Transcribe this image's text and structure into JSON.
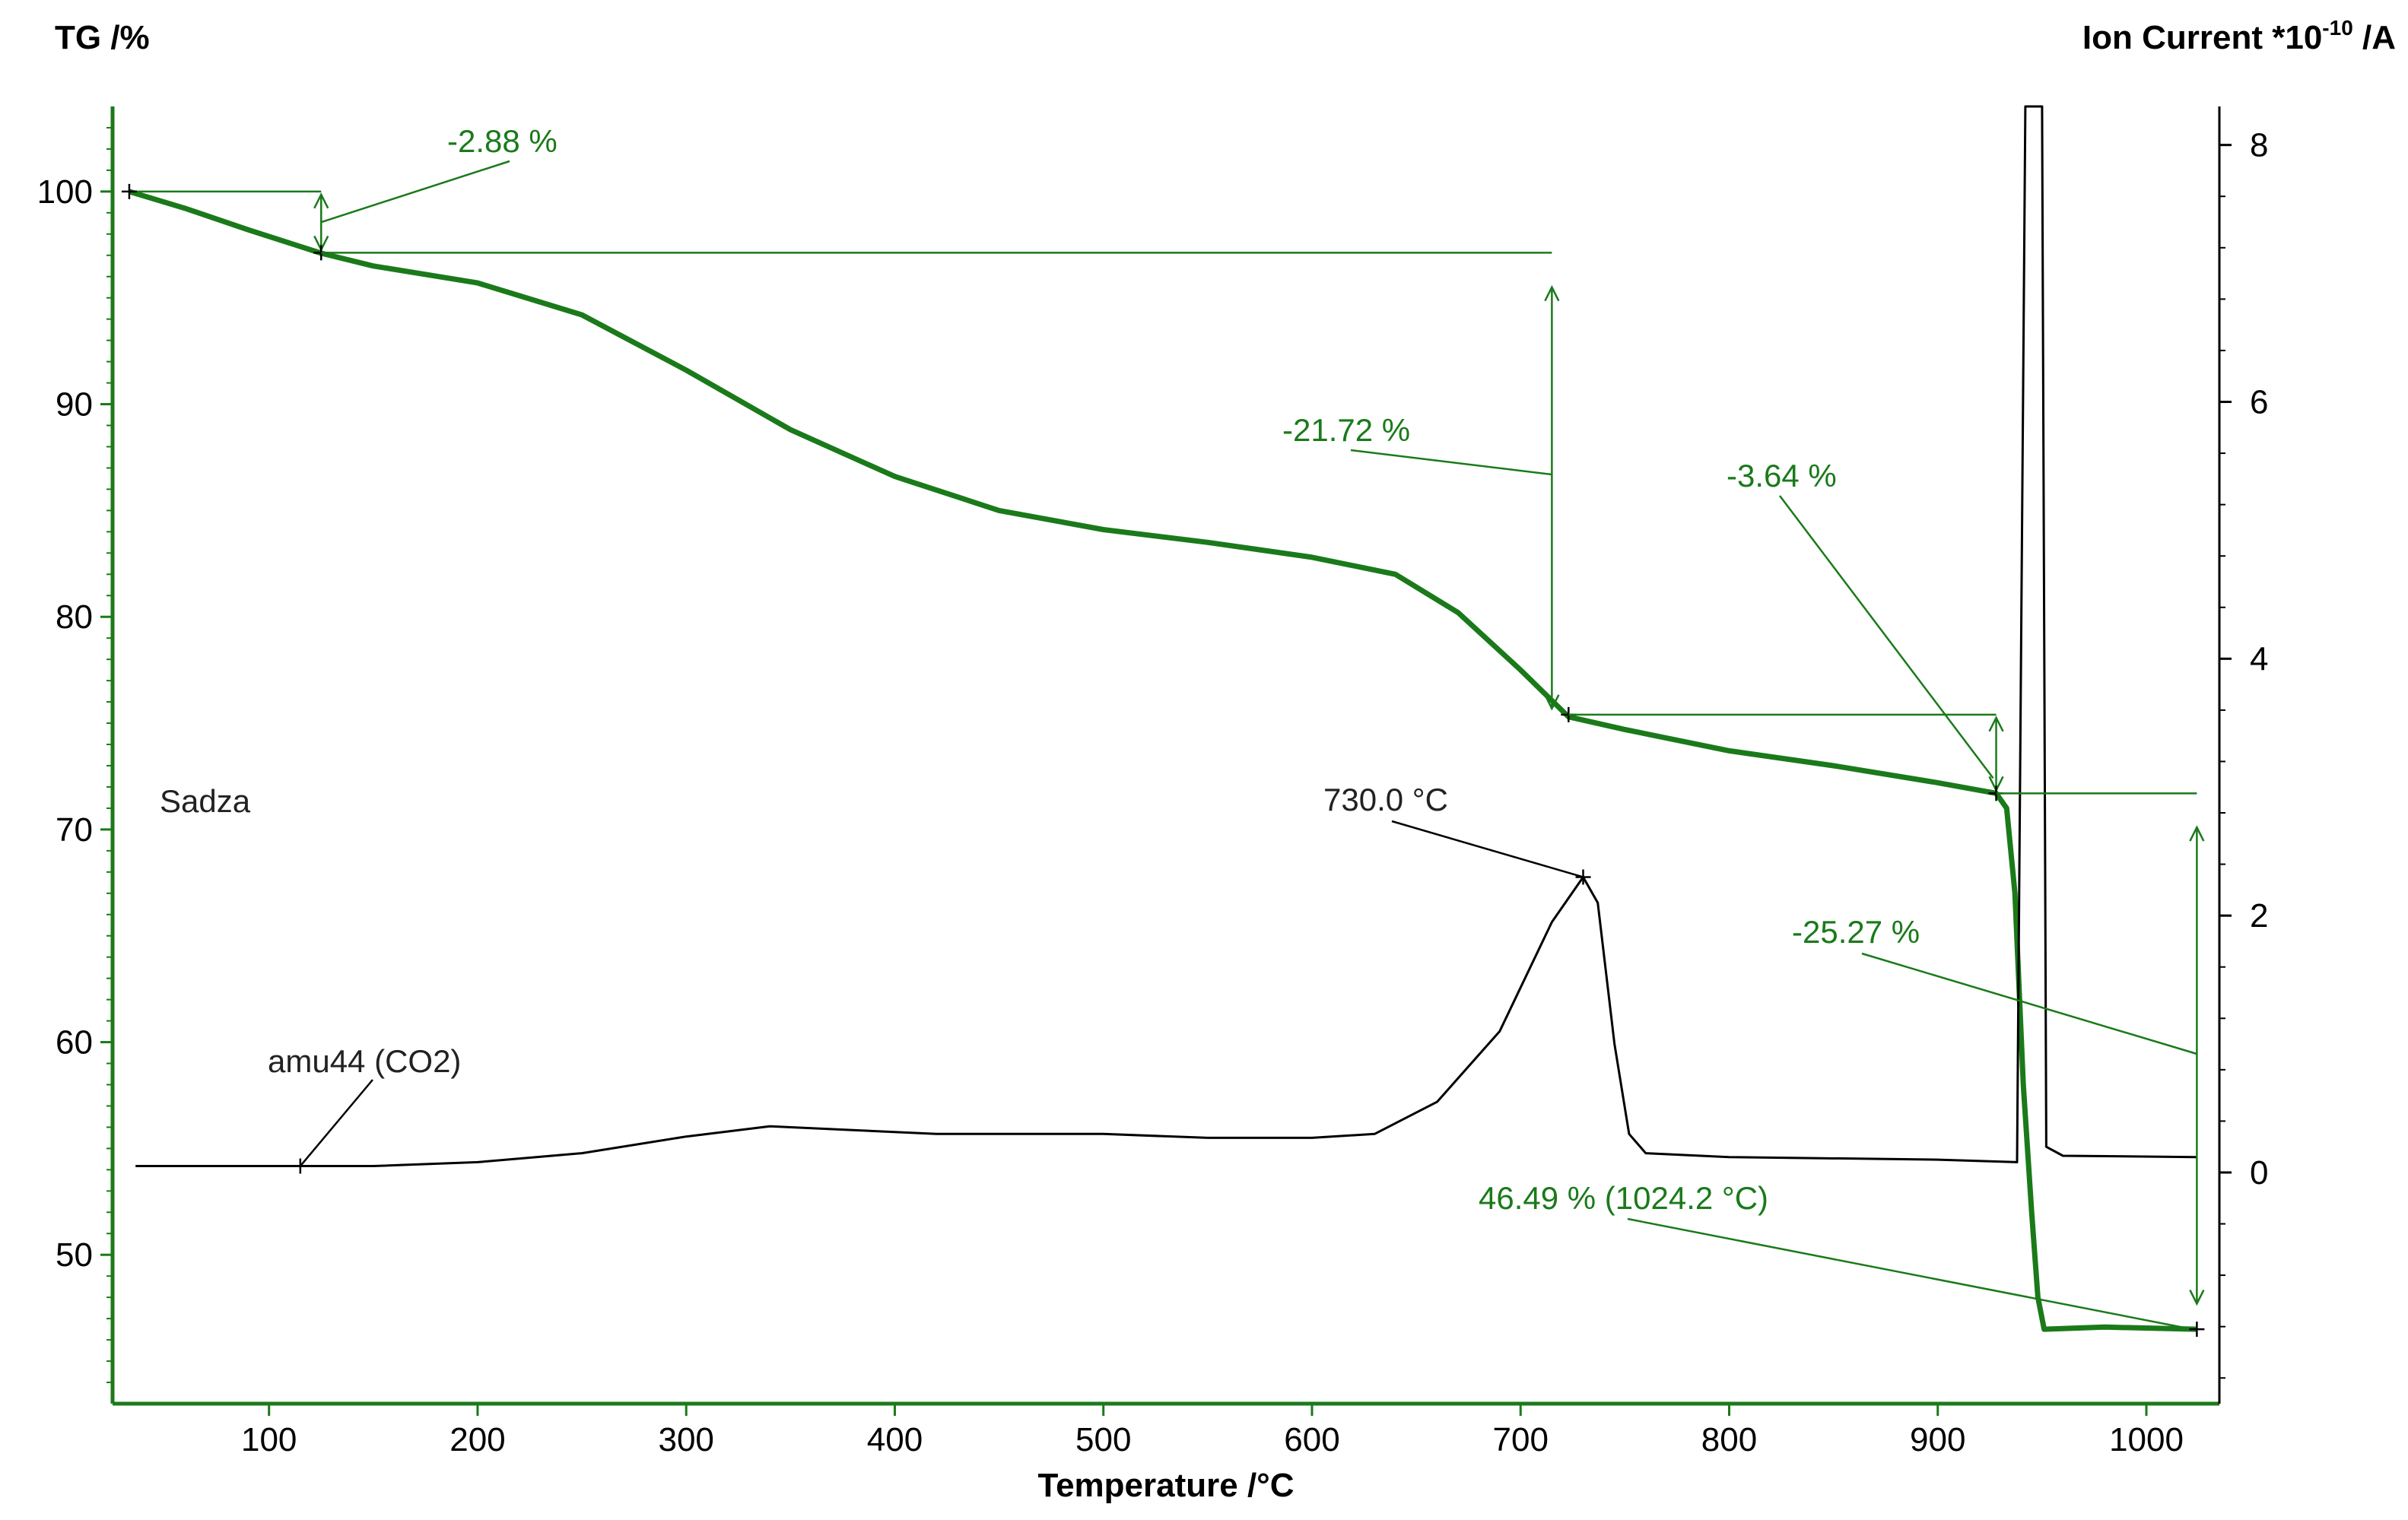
{
  "chart_data": {
    "type": "line",
    "title": "",
    "xlabel": "Temperature /°C",
    "ylabel_left": "TG /%",
    "ylabel_right_prefix": "Ion Current *10",
    "ylabel_right_exp": "-10",
    "ylabel_right_suffix": " /A",
    "xlim": [
      25,
      1035
    ],
    "ylim_left": [
      43,
      104
    ],
    "ylim_right": [
      -1.8,
      8.3
    ],
    "x_ticks": [
      100,
      200,
      300,
      400,
      500,
      600,
      700,
      800,
      900,
      1000
    ],
    "y_left_ticks": [
      50,
      60,
      70,
      80,
      90,
      100
    ],
    "y_right_ticks": [
      0,
      2,
      4,
      6,
      8
    ],
    "grid": false,
    "colors": {
      "tg": "#1a7a1a",
      "ms": "#000000",
      "annotation": "#1a7a1a"
    },
    "sample_label": "Sadza",
    "series": [
      {
        "name": "TG",
        "axis": "left",
        "points": [
          [
            33,
            100.0
          ],
          [
            60,
            99.2
          ],
          [
            90,
            98.2
          ],
          [
            125,
            97.1
          ],
          [
            150,
            96.5
          ],
          [
            200,
            95.7
          ],
          [
            250,
            94.2
          ],
          [
            300,
            91.6
          ],
          [
            350,
            88.8
          ],
          [
            400,
            86.6
          ],
          [
            450,
            85.0
          ],
          [
            500,
            84.1
          ],
          [
            550,
            83.5
          ],
          [
            600,
            82.8
          ],
          [
            640,
            82.0
          ],
          [
            670,
            80.2
          ],
          [
            700,
            77.5
          ],
          [
            723,
            75.3
          ],
          [
            750,
            74.7
          ],
          [
            800,
            73.7
          ],
          [
            850,
            73.0
          ],
          [
            900,
            72.2
          ],
          [
            928,
            71.7
          ],
          [
            933,
            71.0
          ],
          [
            937,
            67.0
          ],
          [
            941,
            58.0
          ],
          [
            945,
            52.0
          ],
          [
            948,
            48.0
          ],
          [
            951,
            46.5
          ],
          [
            980,
            46.6
          ],
          [
            1024.2,
            46.5
          ]
        ]
      },
      {
        "name": "amu44 (CO2)",
        "axis": "right",
        "points": [
          [
            36,
            0.05
          ],
          [
            100,
            0.05
          ],
          [
            150,
            0.05
          ],
          [
            200,
            0.08
          ],
          [
            250,
            0.15
          ],
          [
            300,
            0.28
          ],
          [
            340,
            0.36
          ],
          [
            380,
            0.33
          ],
          [
            420,
            0.3
          ],
          [
            500,
            0.3
          ],
          [
            550,
            0.27
          ],
          [
            600,
            0.27
          ],
          [
            630,
            0.3
          ],
          [
            660,
            0.55
          ],
          [
            690,
            1.1
          ],
          [
            715,
            1.95
          ],
          [
            730,
            2.3
          ],
          [
            737,
            2.1
          ],
          [
            745,
            1.0
          ],
          [
            752,
            0.3
          ],
          [
            760,
            0.15
          ],
          [
            800,
            0.12
          ],
          [
            900,
            0.1
          ],
          [
            938,
            0.08
          ],
          [
            942,
            8.3
          ],
          [
            950,
            8.3
          ],
          [
            952,
            0.2
          ],
          [
            960,
            0.13
          ],
          [
            1024,
            0.12
          ]
        ]
      }
    ],
    "annotations": {
      "mass_change_1": "-2.88 %",
      "mass_change_2": "-21.72 %",
      "mass_change_3": "-3.64 %",
      "mass_change_4": "-25.27 %",
      "residual_mass": "46.49 % (1024.2 °C)",
      "peak": "730.0 °C",
      "series_label": "amu44 (CO2)"
    }
  }
}
